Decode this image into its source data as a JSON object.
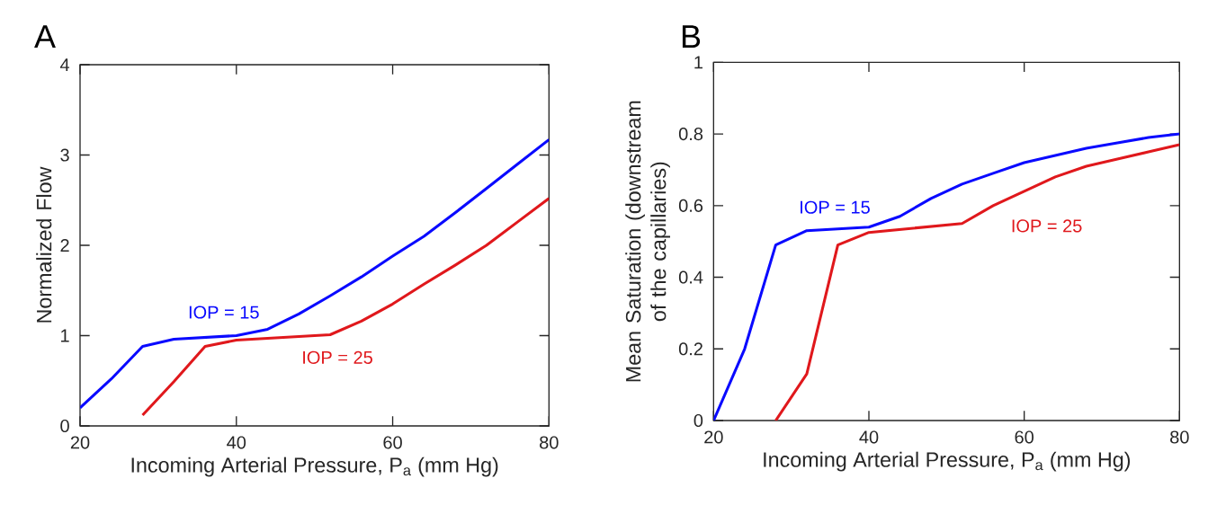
{
  "chart_data": [
    {
      "type": "line",
      "title": "A",
      "xlabel": "Incoming Arterial Pressure, P$_{a}$ (mm Hg)",
      "ylabel": "Normalized Flow",
      "xlim": [
        20,
        80
      ],
      "ylim": [
        0,
        4
      ],
      "xticks": [
        20,
        40,
        60,
        80
      ],
      "yticks": [
        0,
        1,
        2,
        3,
        4
      ],
      "grid": false,
      "marker": "none",
      "line_style": "solid",
      "series": [
        {
          "name": "IOP = 15",
          "color": "#0a0aff",
          "x": [
            20,
            24,
            28,
            32,
            40,
            44,
            48,
            52,
            56,
            60,
            64,
            68,
            72,
            76,
            80
          ],
          "values": [
            0.2,
            0.52,
            0.88,
            0.96,
            1.0,
            1.07,
            1.24,
            1.44,
            1.65,
            1.88,
            2.1,
            2.36,
            2.63,
            2.9,
            3.17
          ]
        },
        {
          "name": "IOP = 25",
          "color": "#e0181c",
          "x": [
            28,
            32,
            36,
            40,
            52,
            56,
            60,
            64,
            68,
            72,
            76,
            80
          ],
          "values": [
            0.12,
            0.49,
            0.88,
            0.95,
            1.01,
            1.16,
            1.35,
            1.57,
            1.78,
            2.0,
            2.26,
            2.52
          ]
        }
      ]
    },
    {
      "type": "line",
      "title": "B",
      "xlabel": "Incoming Arterial Pressure, P$_{a}$ (mm Hg)",
      "ylabel": "Mean Saturation (downstream of the capillaries)",
      "xlim": [
        20,
        80
      ],
      "ylim": [
        0,
        1
      ],
      "xticks": [
        20,
        40,
        60,
        80
      ],
      "yticks": [
        0,
        0.2,
        0.4,
        0.6,
        0.8,
        1
      ],
      "grid": false,
      "marker": "none",
      "line_style": "solid",
      "series": [
        {
          "name": "IOP = 15",
          "color": "#0a0aff",
          "x": [
            20,
            24,
            28,
            32,
            40,
            44,
            48,
            52,
            56,
            60,
            64,
            68,
            72,
            76,
            80
          ],
          "values": [
            0,
            0.2,
            0.49,
            0.53,
            0.54,
            0.57,
            0.62,
            0.66,
            0.69,
            0.72,
            0.74,
            0.76,
            0.775,
            0.79,
            0.8
          ]
        },
        {
          "name": "IOP = 25",
          "color": "#e0181c",
          "x": [
            28,
            32,
            36,
            40,
            52,
            56,
            60,
            64,
            68,
            72,
            76,
            80
          ],
          "values": [
            0,
            0.13,
            0.49,
            0.525,
            0.55,
            0.6,
            0.64,
            0.68,
            0.71,
            0.73,
            0.75,
            0.77
          ]
        }
      ]
    }
  ]
}
